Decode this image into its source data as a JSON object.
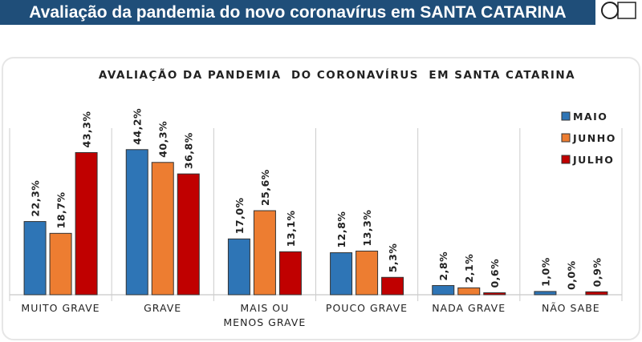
{
  "header": {
    "title": "Avaliação da pandemia do novo coronavírus em SANTA CATARINA"
  },
  "chart_data": {
    "type": "bar",
    "title": "AVALIAÇÃO DA PANDEMIA  DO CORONAVÍRUS  EM SANTA CATARINA",
    "categories": [
      "MUITO GRAVE",
      "GRAVE",
      "MAIS OU\nMENOS GRAVE",
      "POUCO GRAVE",
      "NADA GRAVE",
      "NÃO SABE"
    ],
    "series": [
      {
        "name": "MAIO",
        "color": "#2e75b6",
        "values": [
          22.3,
          44.2,
          17.0,
          12.8,
          2.8,
          1.0
        ],
        "value_labels": [
          "22,3%",
          "44,2%",
          "17,0%",
          "12,8%",
          "2,8%",
          "1,0%"
        ]
      },
      {
        "name": "JUNHO",
        "color": "#ed7d31",
        "values": [
          18.7,
          40.3,
          25.6,
          13.3,
          2.1,
          0.0
        ],
        "value_labels": [
          "18,7%",
          "40,3%",
          "25,6%",
          "13,3%",
          "2,1%",
          "0,0%"
        ]
      },
      {
        "name": "JULHO",
        "color": "#c00000",
        "values": [
          43.3,
          36.8,
          13.1,
          5.3,
          0.6,
          0.9
        ],
        "value_labels": [
          "43,3%",
          "36,8%",
          "13,1%",
          "5,3%",
          "0,6%",
          "0,9%"
        ]
      }
    ],
    "ylim": [
      0,
      50
    ],
    "legend": "top-right"
  }
}
